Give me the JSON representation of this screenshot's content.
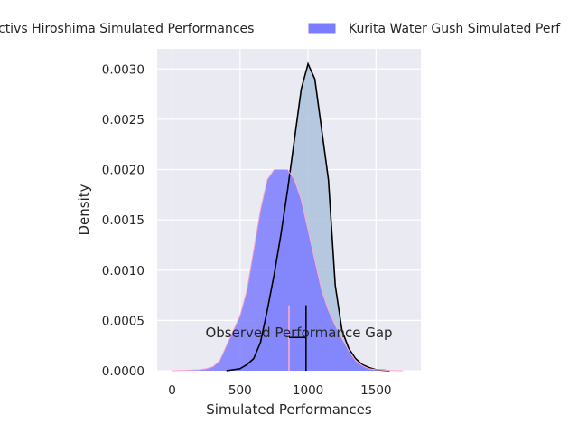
{
  "chart_data": {
    "type": "area",
    "title": "",
    "xlabel": "Simulated Performances",
    "ylabel": "Density",
    "xlim": [
      -110,
      1830
    ],
    "ylim": [
      0,
      0.0032
    ],
    "x_ticks": [
      0,
      500,
      1000,
      1500
    ],
    "x_tick_labels": [
      "0",
      "500",
      "1000",
      "1500"
    ],
    "y_ticks": [
      0,
      0.0005,
      0.001,
      0.0015,
      0.002,
      0.0025,
      0.003
    ],
    "y_tick_labels": [
      "0.0000",
      "0.0005",
      "0.0010",
      "0.0015",
      "0.0020",
      "0.0025",
      "0.0030"
    ],
    "grid": true,
    "legend": {
      "placement": "top, above plot",
      "columns": 2
    },
    "series": [
      {
        "name": "Bioactivs Hiroshima Simulated Performances",
        "legend_label": "ctivs Hiroshima Simulated Performances",
        "fill": "#b0c4de",
        "line": "#000000",
        "x": [
          400,
          500,
          550,
          600,
          650,
          700,
          750,
          800,
          850,
          900,
          950,
          1000,
          1050,
          1100,
          1150,
          1200,
          1250,
          1300,
          1350,
          1400,
          1450,
          1500,
          1550,
          1600
        ],
        "y": [
          0,
          2e-05,
          6e-05,
          0.00012,
          0.00028,
          0.0006,
          0.00095,
          0.00135,
          0.0018,
          0.0023,
          0.0028,
          0.00305,
          0.0029,
          0.0024,
          0.0019,
          0.00085,
          0.0004,
          0.00022,
          0.00012,
          6e-05,
          3e-05,
          1e-05,
          5e-06,
          0
        ]
      },
      {
        "name": "Kurita Water Gush Simulated Performances",
        "legend_label": "Kurita Water Gush Simulated Perf",
        "fill": "#7b7bff",
        "line": "#ffaacc",
        "x": [
          0,
          100,
          200,
          250,
          300,
          350,
          400,
          450,
          500,
          550,
          600,
          650,
          700,
          750,
          800,
          850,
          900,
          950,
          1000,
          1050,
          1100,
          1150,
          1200,
          1250,
          1300,
          1350,
          1400,
          1450,
          1500,
          1600,
          1700
        ],
        "y": [
          0,
          5e-06,
          1e-05,
          2e-05,
          4e-05,
          0.0001,
          0.00025,
          0.0004,
          0.00055,
          0.0008,
          0.0012,
          0.0016,
          0.0019,
          0.002,
          0.002,
          0.002,
          0.0019,
          0.0017,
          0.0014,
          0.0011,
          0.0008,
          0.0006,
          0.00045,
          0.00032,
          0.0002,
          0.0001,
          5e-05,
          2e-05,
          1e-05,
          3e-06,
          0
        ]
      }
    ],
    "observed": [
      {
        "x": 860,
        "ymax": 0.00065,
        "color": "#ffaacc"
      },
      {
        "x": 985,
        "ymax": 0.00065,
        "color": "#000000"
      }
    ],
    "gap": {
      "x1": 860,
      "x2": 985,
      "y": 0.00033
    },
    "annotation": {
      "text": "Observed Performance Gap",
      "x": 920,
      "y": 0.00033
    }
  }
}
